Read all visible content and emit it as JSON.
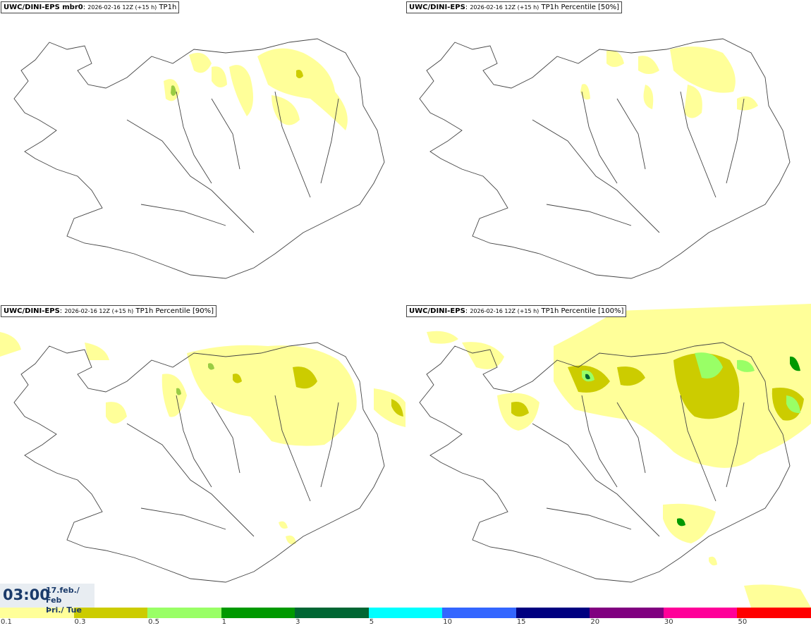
{
  "panels": [
    {
      "model": "UWC/DINI-EPS mbr0",
      "run": "2026-02-16 12Z (+15 h)",
      "param": "TP1h"
    },
    {
      "model": "UWC/DINI-EPS",
      "run": "2026-02-16 12Z (+15 h)",
      "param": "TP1h Percentile [50%]"
    },
    {
      "model": "UWC/DINI-EPS",
      "run": "2026-02-16 12Z (+15 h)",
      "param": "TP1h Percentile [90%]"
    },
    {
      "model": "UWC/DINI-EPS",
      "run": "2026-02-16 12Z (+15 h)",
      "param": "TP1h Percentile [100%]"
    }
  ],
  "valid_time": {
    "time": "03:00",
    "date": "17.feb./ Feb",
    "weekday": "Þri./ Tue"
  },
  "legend": {
    "colors": [
      "#ffff99",
      "#cccc00",
      "#99ff66",
      "#009900",
      "#006633",
      "#00ffff",
      "#3366ff",
      "#000080",
      "#800080",
      "#ff0099",
      "#ff0000"
    ],
    "labels": [
      "0.1",
      "0.3",
      "0.5",
      "1",
      "3",
      "5",
      "10",
      "15",
      "20",
      "30",
      "50"
    ]
  }
}
